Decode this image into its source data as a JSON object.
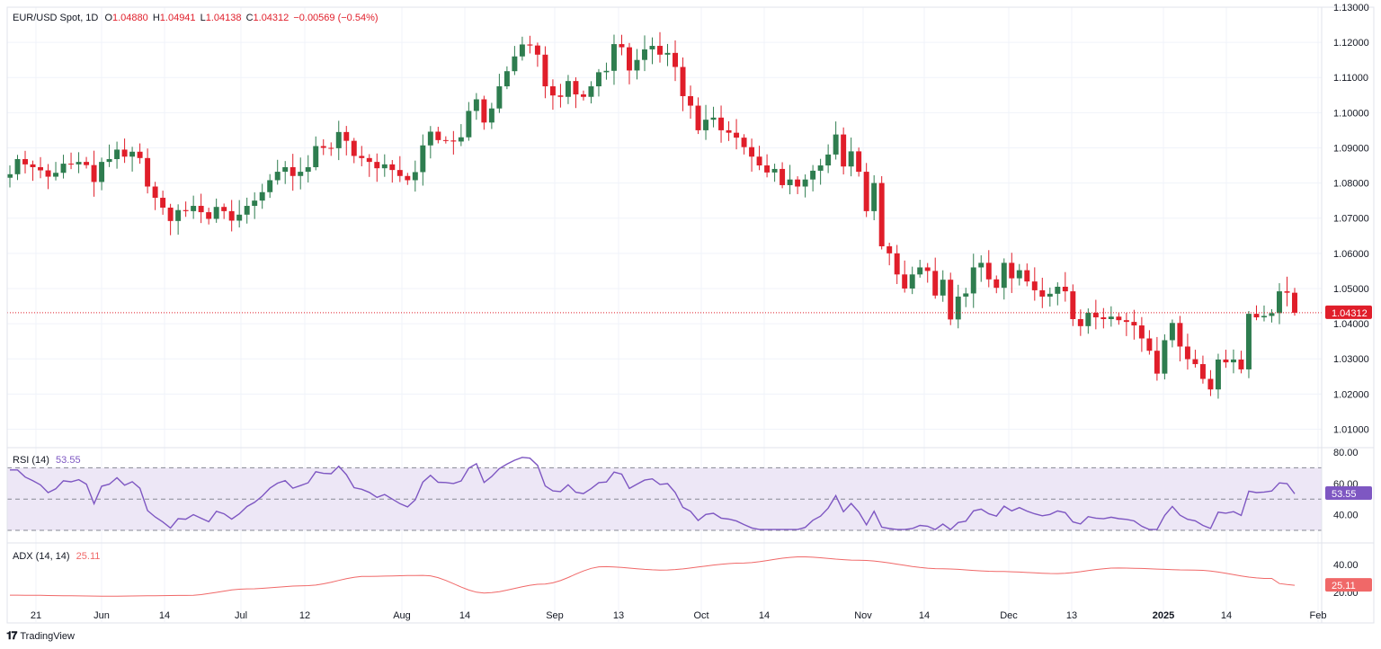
{
  "colors": {
    "up": "#26a69a",
    "up_body": "#2e7d4f",
    "down": "#e01e2a",
    "grid": "#f0f3fa",
    "rsi_line": "#7e57c2",
    "rsi_band": "#ede7f6",
    "adx_line": "#f06868",
    "price_tag": "#e01e2a"
  },
  "header": {
    "symbol": "EUR/USD Spot, 1D",
    "open_label": "O",
    "open": "1.04880",
    "high_label": "H",
    "high": "1.04941",
    "low_label": "L",
    "low": "1.04138",
    "close_label": "C",
    "close": "1.04312",
    "change": "−0.00569 (−0.54%)"
  },
  "rsi_header": {
    "label": "RSI (14)",
    "value": "53.55"
  },
  "adx_header": {
    "label": "ADX (14, 14)",
    "value": "25.11"
  },
  "branding": {
    "logo_text": "TradingView"
  },
  "chart_data": [
    {
      "type": "candlestick",
      "title": "EUR/USD Spot, 1D",
      "ylim": [
        1.005,
        1.13
      ],
      "y_ticks": [
        "1.13000",
        "1.12000",
        "1.11000",
        "1.10000",
        "1.09000",
        "1.08000",
        "1.07000",
        "1.06000",
        "1.05000",
        "1.04000",
        "1.03000",
        "1.02000",
        "1.01000"
      ],
      "x_ticks": [
        "21",
        "Jun",
        "14",
        "Jul",
        "12",
        "Aug",
        "14",
        "Sep",
        "13",
        "Oct",
        "14",
        "Nov",
        "14",
        "Dec",
        "13",
        "2025",
        "14",
        "Feb"
      ],
      "last_price": "1.04312",
      "last_price_value": 1.04312,
      "closes": [
        1.0825,
        1.0868,
        1.0853,
        1.0845,
        1.0836,
        1.0818,
        1.0829,
        1.0855,
        1.0853,
        1.086,
        1.0851,
        1.0803,
        1.086,
        1.0868,
        1.0895,
        1.0875,
        1.0889,
        1.0871,
        1.079,
        1.0758,
        1.073,
        1.0692,
        1.0723,
        1.072,
        1.0735,
        1.0717,
        1.0698,
        1.0732,
        1.072,
        1.0693,
        1.071,
        1.0735,
        1.075,
        1.0774,
        1.0808,
        1.0832,
        1.0845,
        1.082,
        1.0832,
        1.0845,
        1.0905,
        1.09,
        1.0899,
        1.0945,
        1.092,
        1.0877,
        1.0871,
        1.086,
        1.0842,
        1.0853,
        1.0837,
        1.082,
        1.0808,
        1.0831,
        1.0907,
        1.0946,
        1.0922,
        1.0921,
        1.0918,
        1.093,
        1.1005,
        1.1038,
        1.0972,
        1.1012,
        1.1075,
        1.1118,
        1.116,
        1.1194,
        1.1191,
        1.1165,
        1.1075,
        1.1049,
        1.1045,
        1.109,
        1.1052,
        1.1045,
        1.1075,
        1.1115,
        1.1119,
        1.1195,
        1.1186,
        1.112,
        1.115,
        1.118,
        1.119,
        1.1165,
        1.117,
        1.113,
        1.1047,
        1.102,
        1.095,
        1.098,
        1.0986,
        1.095,
        1.0943,
        1.0929,
        1.0902,
        1.0875,
        1.085,
        1.083,
        1.084,
        1.0794,
        1.081,
        1.079,
        1.081,
        1.0835,
        1.085,
        1.0881,
        1.0938,
        1.0847,
        1.089,
        1.0832,
        1.072,
        1.08,
        1.062,
        1.06,
        1.054,
        1.05,
        1.054,
        1.056,
        1.055,
        1.048,
        1.0525,
        1.0412,
        1.0477,
        1.0486,
        1.056,
        1.0573,
        1.0526,
        1.0502,
        1.0573,
        1.0529,
        1.0552,
        1.052,
        1.0495,
        1.0477,
        1.0485,
        1.0505,
        1.0492,
        1.0413,
        1.0393,
        1.0431,
        1.0418,
        1.0413,
        1.042,
        1.041,
        1.0405,
        1.0395,
        1.0358,
        1.0323,
        1.0258,
        1.0353,
        1.0402,
        1.0335,
        1.0299,
        1.0285,
        1.0243,
        1.0213,
        1.0298,
        1.029,
        1.0298,
        1.027,
        1.0428,
        1.0418,
        1.0422,
        1.043,
        1.0492,
        1.0488,
        1.0431
      ],
      "rsi": {
        "ylim": [
          30,
          80
        ],
        "y_ticks": [
          "80.00",
          "60.00",
          "40.00"
        ],
        "bands": [
          70,
          50,
          30
        ],
        "last_value": "53.55",
        "last_value_num": 53.55
      },
      "adx": {
        "ylim": [
          15,
          50
        ],
        "y_ticks": [
          "40.00",
          "20.00"
        ],
        "last_value": "25.11",
        "last_value_num": 25.11
      }
    }
  ]
}
